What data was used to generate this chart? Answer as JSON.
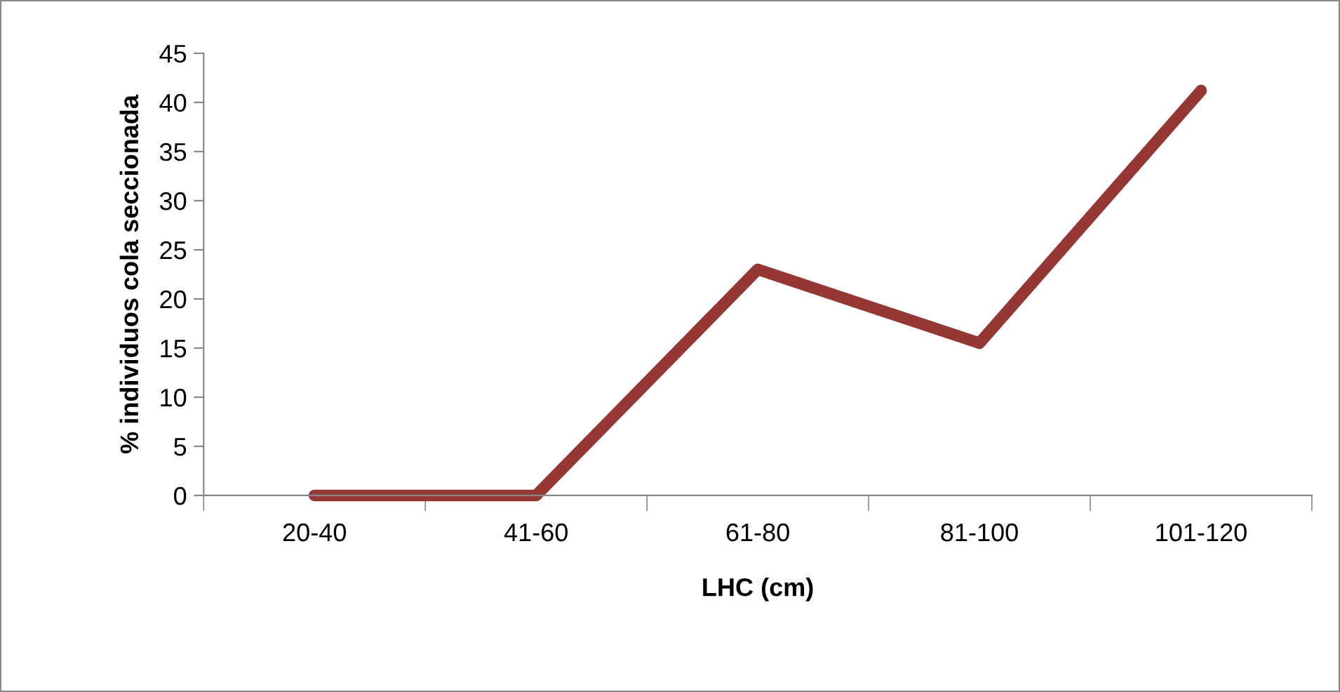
{
  "chart_data": {
    "type": "line",
    "xlabel": "LHC (cm)",
    "ylabel": "% individuos cola seccionada",
    "categories": [
      "20-40",
      "41-60",
      "61-80",
      "81-100",
      "101-120"
    ],
    "series": [
      {
        "color": "#953735",
        "values": [
          0,
          0,
          23,
          15.5,
          41.2
        ]
      }
    ],
    "ylim": [
      0,
      45
    ],
    "yticks": [
      0,
      5,
      10,
      15,
      20,
      25,
      30,
      35,
      40,
      45
    ],
    "grid": false,
    "legend": false,
    "marker": "none",
    "line_style": "solid"
  }
}
